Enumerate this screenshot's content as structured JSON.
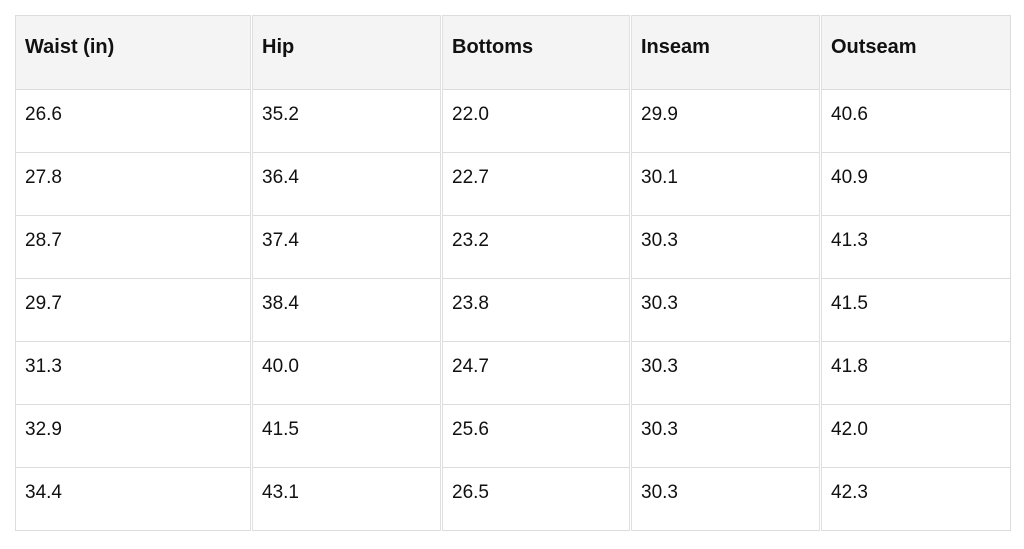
{
  "table": {
    "headers": [
      "Waist (in)",
      "Hip",
      "Bottoms",
      "Inseam",
      "Outseam"
    ],
    "rows": [
      [
        "26.6",
        "35.2",
        "22.0",
        "29.9",
        "40.6"
      ],
      [
        "27.8",
        "36.4",
        "22.7",
        "30.1",
        "40.9"
      ],
      [
        "28.7",
        "37.4",
        "23.2",
        "30.3",
        "41.3"
      ],
      [
        "29.7",
        "38.4",
        "23.8",
        "30.3",
        "41.5"
      ],
      [
        "31.3",
        "40.0",
        "24.7",
        "30.3",
        "41.8"
      ],
      [
        "32.9",
        "41.5",
        "25.6",
        "30.3",
        "42.0"
      ],
      [
        "34.4",
        "43.1",
        "26.5",
        "30.3",
        "42.3"
      ]
    ]
  }
}
